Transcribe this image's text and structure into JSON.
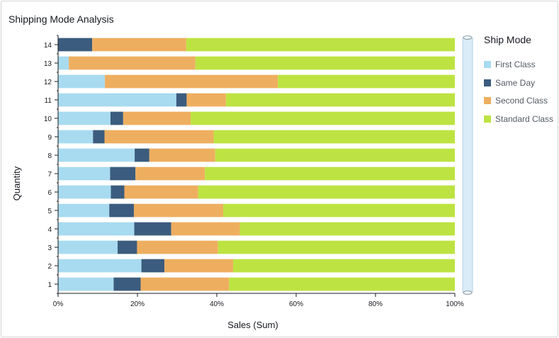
{
  "title": "Shipping Mode Analysis",
  "legend": {
    "title": "Ship Mode",
    "items": [
      {
        "label": "First Class",
        "color": "#a8dbf0"
      },
      {
        "label": "Same Day",
        "color": "#3b5c7e"
      },
      {
        "label": "Second Class",
        "color": "#eeae60"
      },
      {
        "label": "Standard Class",
        "color": "#bde342"
      }
    ]
  },
  "chart_data": {
    "type": "bar",
    "orientation": "horizontal",
    "stacked": "percent",
    "title": "Shipping Mode Analysis",
    "xlabel": "Sales (Sum)",
    "ylabel": "Quantity",
    "xlim": [
      0,
      100
    ],
    "xticks": [
      "0%",
      "20%",
      "40%",
      "60%",
      "80%",
      "100%"
    ],
    "categories": [
      "1",
      "2",
      "3",
      "4",
      "5",
      "6",
      "7",
      "8",
      "9",
      "10",
      "11",
      "12",
      "13",
      "14"
    ],
    "series": [
      {
        "name": "First Class",
        "color": "#a8dbf0",
        "values": [
          14.0,
          21.0,
          15.0,
          19.2,
          12.9,
          13.3,
          13.1,
          19.3,
          8.8,
          13.2,
          29.8,
          11.8,
          2.7,
          0.0
        ]
      },
      {
        "name": "Same Day",
        "color": "#3b5c7e",
        "values": [
          6.8,
          5.8,
          4.9,
          9.3,
          6.2,
          3.4,
          6.4,
          3.7,
          2.9,
          3.2,
          2.6,
          0.0,
          0.0,
          8.6
        ]
      },
      {
        "name": "Second Class",
        "color": "#eeae60",
        "values": [
          22.3,
          17.3,
          20.4,
          17.3,
          22.5,
          18.6,
          17.5,
          16.6,
          27.5,
          17.0,
          9.9,
          43.6,
          31.9,
          23.7
        ]
      },
      {
        "name": "Standard Class",
        "color": "#bde342",
        "values": [
          56.9,
          55.9,
          59.7,
          54.2,
          58.4,
          64.7,
          63.0,
          60.4,
          60.8,
          66.6,
          57.7,
          44.6,
          65.4,
          67.7
        ]
      }
    ],
    "legend_position": "right",
    "grid": false
  }
}
